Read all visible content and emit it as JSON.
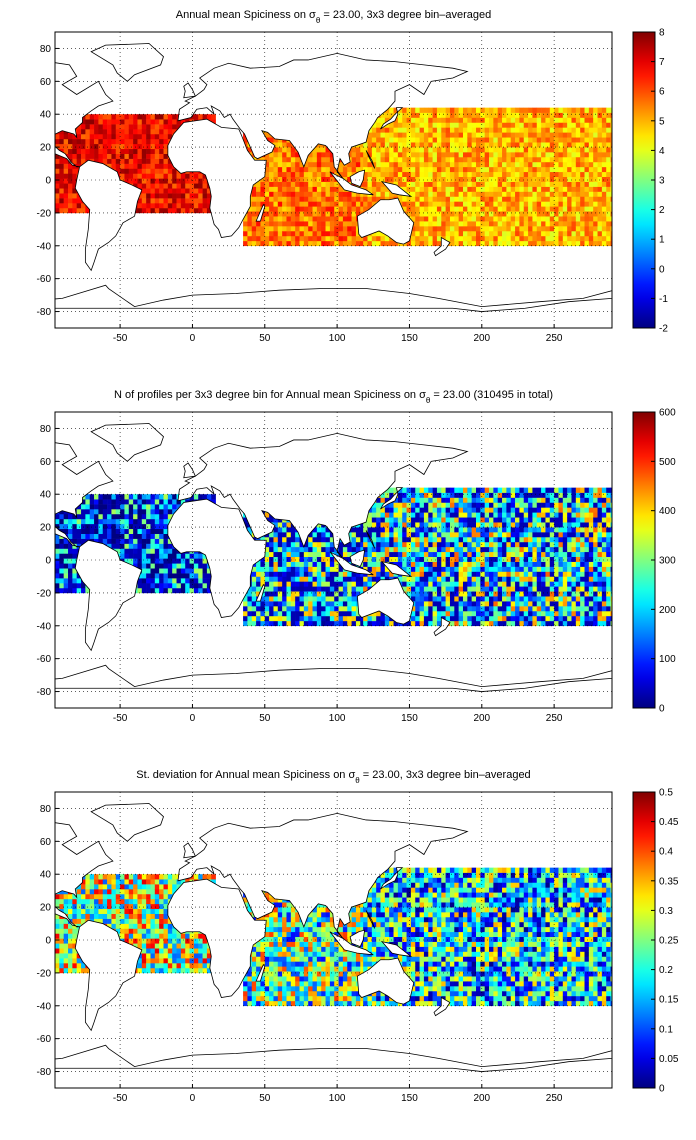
{
  "chart_data": [
    {
      "type": "heatmap",
      "title_prefix": "Annual mean Spiciness on ",
      "title_sigma": "σ",
      "title_sub": "θ",
      "title_suffix": " = 23.00, 3x3 degree bin–averaged",
      "xlim": [
        -95,
        290
      ],
      "ylim": [
        -90,
        90
      ],
      "xticks": [
        "-50",
        "0",
        "50",
        "100",
        "150",
        "200",
        "250"
      ],
      "yticks": [
        "80",
        "60",
        "40",
        "20",
        "0",
        "-20",
        "-40",
        "-60",
        "-80"
      ],
      "grid": true,
      "colormap": "jet",
      "clim": [
        -2,
        8
      ],
      "colorbar_ticks": [
        "8",
        "7",
        "6",
        "5",
        "4",
        "3",
        "2",
        "1",
        "0",
        "-1",
        "-2"
      ],
      "regions": [
        {
          "name": "Atlantic",
          "lon": [
            -95,
            15
          ],
          "lat": [
            -20,
            38
          ],
          "value": 6.8
        },
        {
          "name": "Indian",
          "lon": [
            35,
            118
          ],
          "lat": [
            -40,
            30
          ],
          "value": 5.6
        },
        {
          "name": "Pacific",
          "lon": [
            118,
            290
          ],
          "lat": [
            -40,
            42
          ],
          "value": 5.0
        }
      ]
    },
    {
      "type": "heatmap",
      "title_prefix": "N of profiles per 3x3 degree bin for Annual mean Spiciness on ",
      "title_sigma": "σ",
      "title_sub": "θ",
      "title_suffix": " = 23.00 (310495 in total)",
      "xlim": [
        -95,
        290
      ],
      "ylim": [
        -90,
        90
      ],
      "xticks": [
        "-50",
        "0",
        "50",
        "100",
        "150",
        "200",
        "250"
      ],
      "yticks": [
        "80",
        "60",
        "40",
        "20",
        "0",
        "-20",
        "-40",
        "-60",
        "-80"
      ],
      "grid": true,
      "colormap": "jet",
      "clim": [
        0,
        600
      ],
      "colorbar_ticks": [
        "600",
        "500",
        "400",
        "300",
        "200",
        "100",
        "0"
      ],
      "total_profiles": 310495,
      "regions": [
        {
          "name": "Atlantic",
          "lon": [
            -95,
            15
          ],
          "lat": [
            -20,
            38
          ],
          "value": 120
        },
        {
          "name": "Indian",
          "lon": [
            35,
            118
          ],
          "lat": [
            -40,
            30
          ],
          "value": 220
        },
        {
          "name": "Pacific",
          "lon": [
            118,
            290
          ],
          "lat": [
            -40,
            42
          ],
          "value": 260
        }
      ]
    },
    {
      "type": "heatmap",
      "title_prefix": "St. deviation for Annual mean Spiciness on ",
      "title_sigma": "σ",
      "title_sub": "θ",
      "title_suffix": " = 23.00, 3x3 degree bin–averaged",
      "xlim": [
        -95,
        290
      ],
      "ylim": [
        -90,
        90
      ],
      "xticks": [
        "-50",
        "0",
        "50",
        "100",
        "150",
        "200",
        "250"
      ],
      "yticks": [
        "80",
        "60",
        "40",
        "20",
        "0",
        "-20",
        "-40",
        "-60",
        "-80"
      ],
      "grid": true,
      "colormap": "jet",
      "clim": [
        0,
        0.5
      ],
      "colorbar_ticks": [
        "0.5",
        "0.45",
        "0.4",
        "0.35",
        "0.3",
        "0.25",
        "0.2",
        "0.15",
        "0.1",
        "0.05",
        "0"
      ],
      "regions": [
        {
          "name": "Atlantic",
          "lon": [
            -95,
            15
          ],
          "lat": [
            -20,
            38
          ],
          "value": 0.28
        },
        {
          "name": "Indian",
          "lon": [
            35,
            118
          ],
          "lat": [
            -40,
            30
          ],
          "value": 0.24
        },
        {
          "name": "Pacific",
          "lon": [
            118,
            290
          ],
          "lat": [
            -40,
            42
          ],
          "value": 0.18
        }
      ]
    }
  ]
}
